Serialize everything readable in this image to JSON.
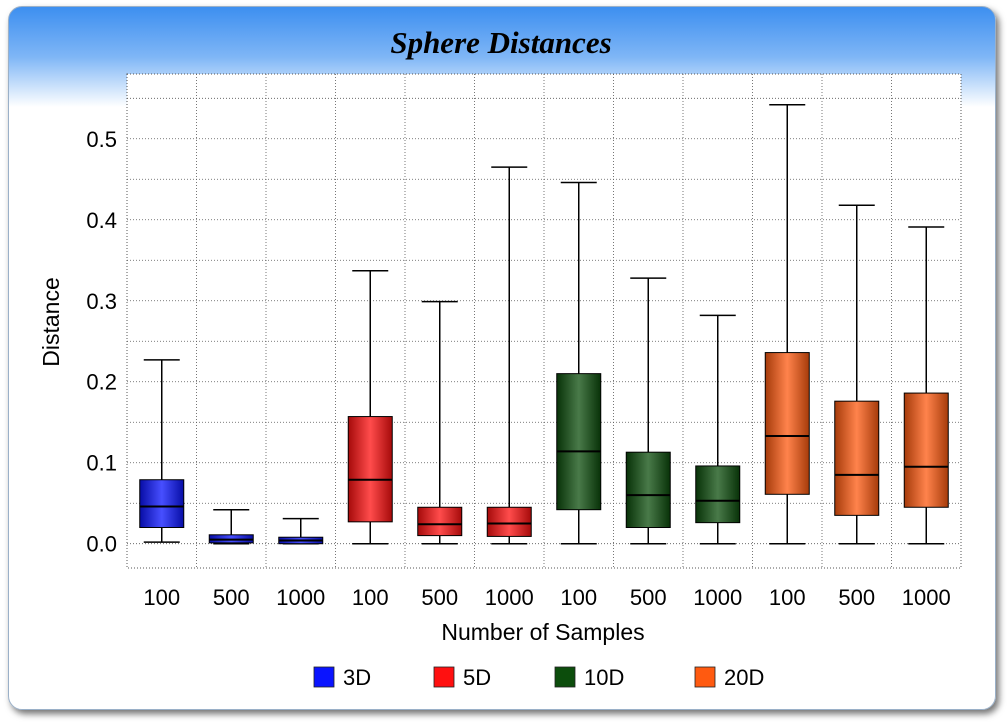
{
  "chart_data": {
    "type": "box",
    "title": "Sphere Distances",
    "xlabel": "Number of Samples",
    "ylabel": "Distance",
    "ylim": [
      -0.03,
      0.58
    ],
    "yticks": [
      "0.0",
      "0.1",
      "0.2",
      "0.3",
      "0.4",
      "0.5"
    ],
    "ytick_values": [
      0.0,
      0.1,
      0.2,
      0.3,
      0.4,
      0.5
    ],
    "grid": true,
    "legend_position": "bottom",
    "categories": [
      "100",
      "500",
      "1000",
      "100",
      "500",
      "1000",
      "100",
      "500",
      "1000",
      "100",
      "500",
      "1000"
    ],
    "series": [
      {
        "name": "3D",
        "color": "#0a14ff",
        "boxes": [
          {
            "samples": "100",
            "min": 0.002,
            "q1": 0.02,
            "median": 0.046,
            "q3": 0.079,
            "max": 0.227
          },
          {
            "samples": "500",
            "min": 0.0,
            "q1": 0.001,
            "median": 0.005,
            "q3": 0.011,
            "max": 0.042
          },
          {
            "samples": "1000",
            "min": 0.0,
            "q1": 0.0,
            "median": 0.004,
            "q3": 0.008,
            "max": 0.031
          }
        ]
      },
      {
        "name": "5D",
        "color": "#ff1010",
        "boxes": [
          {
            "samples": "100",
            "min": 0.0,
            "q1": 0.027,
            "median": 0.079,
            "q3": 0.157,
            "max": 0.337
          },
          {
            "samples": "500",
            "min": 0.0,
            "q1": 0.01,
            "median": 0.024,
            "q3": 0.045,
            "max": 0.299
          },
          {
            "samples": "1000",
            "min": 0.0,
            "q1": 0.009,
            "median": 0.025,
            "q3": 0.045,
            "max": 0.465
          }
        ]
      },
      {
        "name": "10D",
        "color": "#0c4d0c",
        "boxes": [
          {
            "samples": "100",
            "min": 0.0,
            "q1": 0.042,
            "median": 0.114,
            "q3": 0.21,
            "max": 0.446
          },
          {
            "samples": "500",
            "min": 0.0,
            "q1": 0.02,
            "median": 0.06,
            "q3": 0.113,
            "max": 0.328
          },
          {
            "samples": "1000",
            "min": 0.0,
            "q1": 0.026,
            "median": 0.053,
            "q3": 0.096,
            "max": 0.282
          }
        ]
      },
      {
        "name": "20D",
        "color": "#ff5a10",
        "boxes": [
          {
            "samples": "100",
            "min": 0.0,
            "q1": 0.061,
            "median": 0.133,
            "q3": 0.236,
            "max": 0.542
          },
          {
            "samples": "500",
            "min": 0.0,
            "q1": 0.035,
            "median": 0.085,
            "q3": 0.176,
            "max": 0.418
          },
          {
            "samples": "1000",
            "min": 0.0,
            "q1": 0.045,
            "median": 0.095,
            "q3": 0.186,
            "max": 0.391
          }
        ]
      }
    ]
  }
}
